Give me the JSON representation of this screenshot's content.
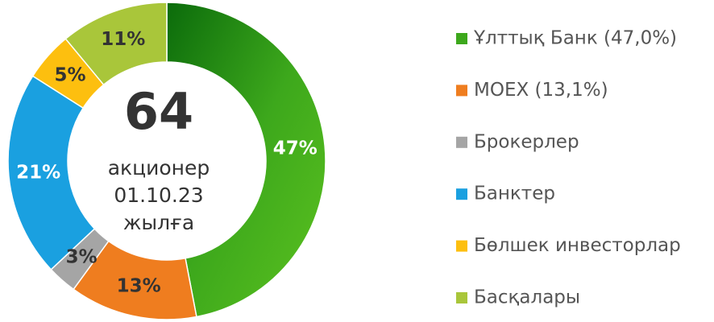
{
  "chart_data": {
    "type": "donut",
    "categories": [
      "Ұлттық Банк (47,0%)",
      "MOEX (13,1%)",
      "Брокерлер",
      "Банктер",
      "Бөлшек инвесторлар",
      "Басқалары"
    ],
    "values": [
      47,
      13,
      3,
      21,
      5,
      11
    ],
    "value_labels": [
      "47%",
      "13%",
      "3%",
      "21%",
      "5%",
      "11%"
    ],
    "colors": [
      "#3da81c",
      "#ef7d1f",
      "#a5a5a5",
      "#1aa0e0",
      "#fdbf0f",
      "#a9c63a"
    ],
    "label_colors": [
      "#ffffff",
      "#333333",
      "#333333",
      "#ffffff",
      "#333333",
      "#333333"
    ],
    "center_value": "64",
    "center_lines": [
      "акционер",
      "01.10.23",
      "жылға"
    ]
  }
}
